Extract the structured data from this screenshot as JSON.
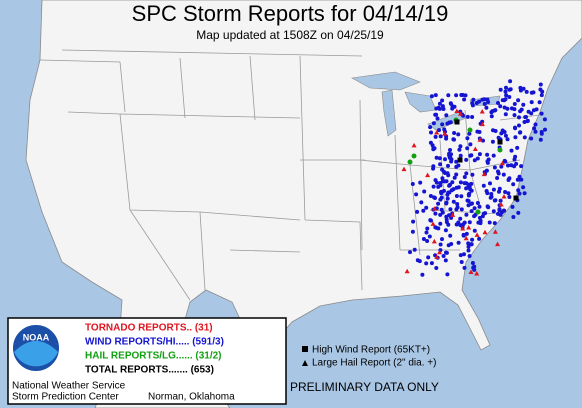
{
  "header": {
    "title": "SPC Storm Reports for 04/14/19",
    "subtitle": "Map updated at 1508Z on 04/25/19"
  },
  "legend": {
    "items": [
      {
        "text": "TORNADO REPORTS.. (31)",
        "color": "#e0141e"
      },
      {
        "text": "WIND REPORTS/HI..... (591/3)",
        "color": "#1414d2"
      },
      {
        "text": "HAIL REPORTS/LG...... (31/2)",
        "color": "#12a012"
      },
      {
        "text": "TOTAL REPORTS....... (653)",
        "color": "#000000"
      }
    ]
  },
  "key": [
    "High Wind Report (65KT+)",
    "Large Hail Report (2\" dia. +)"
  ],
  "footer": {
    "office": "National Weather Service",
    "center": "Storm Prediction Center",
    "location": "Norman, Oklahoma",
    "status": "PRELIMINARY DATA ONLY"
  }
}
